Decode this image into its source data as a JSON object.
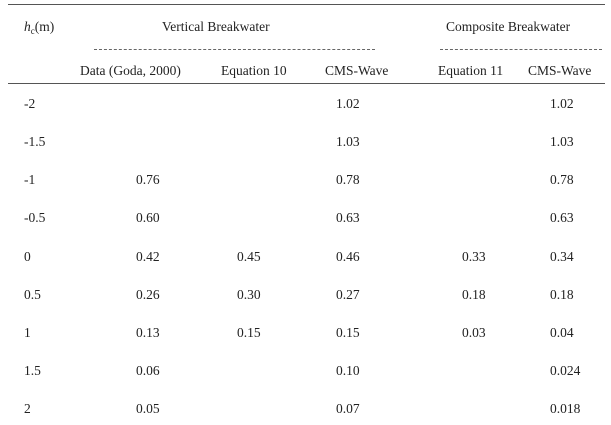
{
  "table": {
    "header": {
      "hc_symbol": "h",
      "hc_subscript": "c",
      "hc_unit": "(m)",
      "group_vertical": "Vertical Breakwater",
      "group_composite": "Composite Breakwater",
      "columns": [
        "Data (Goda, 2000)",
        "Equation 10",
        "CMS-Wave",
        "Equation 11",
        "CMS-Wave"
      ]
    },
    "rows": [
      {
        "hc": "-2",
        "goda": "",
        "eq10": "",
        "cms_v": "1.02",
        "eq11": "",
        "cms_c": "1.02"
      },
      {
        "hc": "-1.5",
        "goda": "",
        "eq10": "",
        "cms_v": "1.03",
        "eq11": "",
        "cms_c": "1.03"
      },
      {
        "hc": "-1",
        "goda": "0.76",
        "eq10": "",
        "cms_v": "0.78",
        "eq11": "",
        "cms_c": "0.78"
      },
      {
        "hc": "-0.5",
        "goda": "0.60",
        "eq10": "",
        "cms_v": "0.63",
        "eq11": "",
        "cms_c": "0.63"
      },
      {
        "hc": "0",
        "goda": "0.42",
        "eq10": "0.45",
        "cms_v": "0.46",
        "eq11": "0.33",
        "cms_c": "0.34"
      },
      {
        "hc": "0.5",
        "goda": "0.26",
        "eq10": "0.30",
        "cms_v": "0.27",
        "eq11": "0.18",
        "cms_c": "0.18"
      },
      {
        "hc": "1",
        "goda": "0.13",
        "eq10": "0.15",
        "cms_v": "0.15",
        "eq11": "0.03",
        "cms_c": "0.04"
      },
      {
        "hc": "1.5",
        "goda": "0.06",
        "eq10": "",
        "cms_v": "0.10",
        "eq11": "",
        "cms_c": "0.024"
      },
      {
        "hc": "2",
        "goda": "0.05",
        "eq10": "",
        "cms_v": "0.07",
        "eq11": "",
        "cms_c": "0.018"
      }
    ]
  }
}
